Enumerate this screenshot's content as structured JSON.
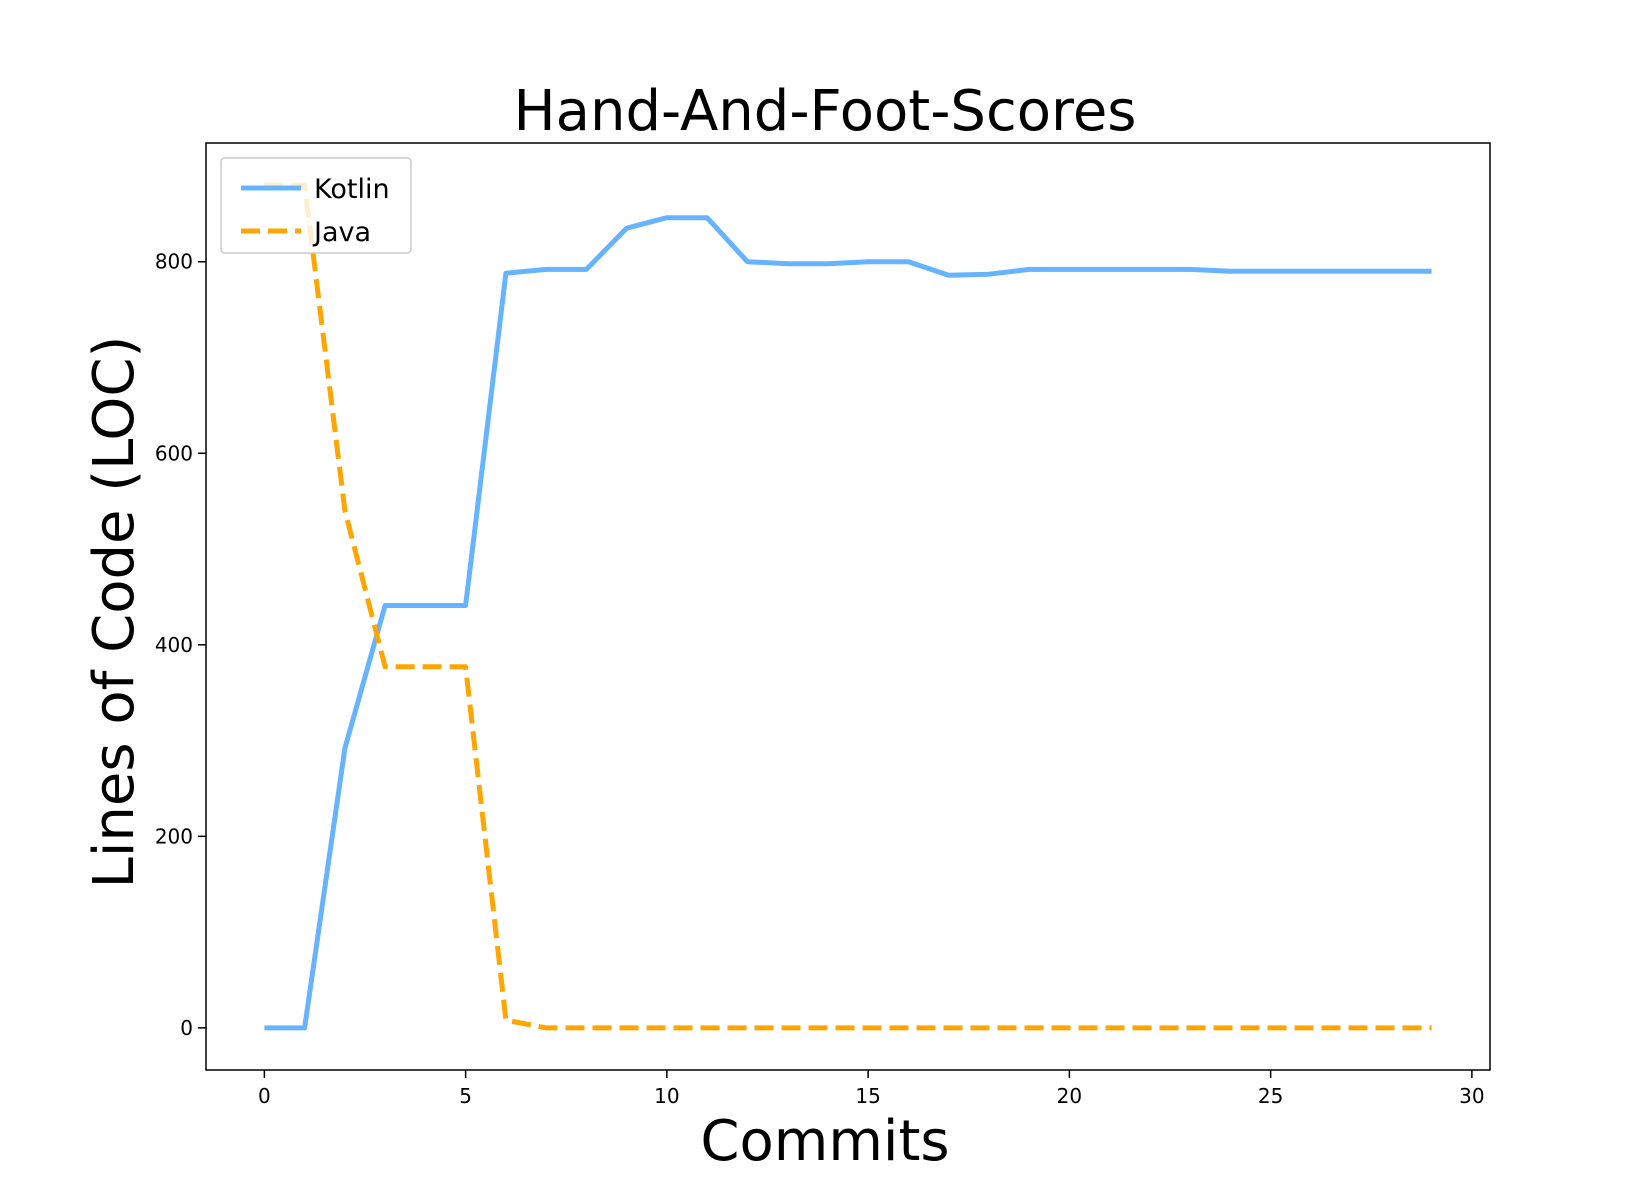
{
  "chart_data": {
    "type": "line",
    "title": "Hand-And-Foot-Scores",
    "xlabel": "Commits",
    "ylabel": "Lines of Code (LOC)",
    "xlim": [
      -1.45,
      30.45
    ],
    "ylim": [
      -44,
      924
    ],
    "xticks": [
      0,
      5,
      10,
      15,
      20,
      25,
      30
    ],
    "yticks": [
      0,
      200,
      400,
      600,
      800
    ],
    "x": [
      0,
      1,
      2,
      3,
      4,
      5,
      6,
      7,
      8,
      9,
      10,
      11,
      12,
      13,
      14,
      15,
      16,
      17,
      18,
      19,
      20,
      21,
      22,
      23,
      24,
      25,
      26,
      27,
      28,
      29
    ],
    "series": [
      {
        "name": "Kotlin",
        "color": "#66b3ff",
        "dash": "solid",
        "values": [
          0,
          0,
          292,
          441,
          441,
          441,
          788,
          792,
          792,
          835,
          846,
          846,
          800,
          798,
          798,
          800,
          800,
          786,
          787,
          792,
          792,
          792,
          792,
          792,
          790,
          790,
          790,
          790,
          790,
          790
        ]
      },
      {
        "name": "Java",
        "color": "#ffa500",
        "dash": "dashed",
        "values": [
          880,
          880,
          540,
          377,
          377,
          377,
          8,
          0,
          0,
          0,
          0,
          0,
          0,
          0,
          0,
          0,
          0,
          0,
          0,
          0,
          0,
          0,
          0,
          0,
          0,
          0,
          0,
          0,
          0,
          0
        ]
      }
    ],
    "grid": false,
    "legend_position": "top-left"
  }
}
